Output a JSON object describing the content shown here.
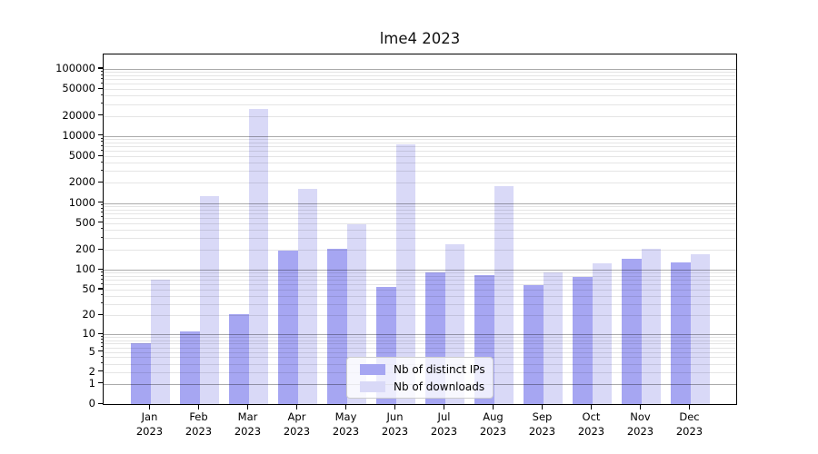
{
  "chart_data": {
    "type": "bar",
    "title": "lme4 2023",
    "categories": [
      {
        "month": "Jan",
        "year": "2023"
      },
      {
        "month": "Feb",
        "year": "2023"
      },
      {
        "month": "Mar",
        "year": "2023"
      },
      {
        "month": "Apr",
        "year": "2023"
      },
      {
        "month": "May",
        "year": "2023"
      },
      {
        "month": "Jun",
        "year": "2023"
      },
      {
        "month": "Jul",
        "year": "2023"
      },
      {
        "month": "Aug",
        "year": "2023"
      },
      {
        "month": "Sep",
        "year": "2023"
      },
      {
        "month": "Oct",
        "year": "2023"
      },
      {
        "month": "Nov",
        "year": "2023"
      },
      {
        "month": "Dec",
        "year": "2023"
      }
    ],
    "series": [
      {
        "name": "Nb of distinct IPs",
        "color": "#a6a6f2",
        "values": [
          7,
          11,
          21,
          195,
          205,
          55,
          90,
          82,
          58,
          78,
          145,
          128
        ]
      },
      {
        "name": "Nb of downloads",
        "color": "#d9d9f7",
        "values": [
          70,
          1250,
          25000,
          1650,
          480,
          7600,
          240,
          1800,
          90,
          125,
          205,
          170
        ]
      }
    ],
    "yscale": "log10(1+x)",
    "yticks": [
      0,
      1,
      2,
      5,
      10,
      20,
      50,
      100,
      200,
      500,
      1000,
      2000,
      5000,
      10000,
      20000,
      50000,
      100000
    ],
    "ylim": [
      0,
      150000
    ],
    "grid": true,
    "legend_position": "lower center"
  }
}
